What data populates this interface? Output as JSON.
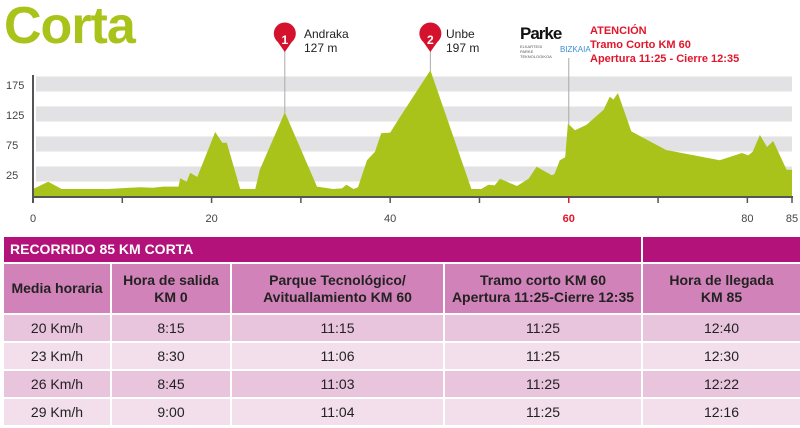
{
  "title": "Corta",
  "chart_data": {
    "type": "area",
    "x_ticks": [
      "0",
      "20",
      "40",
      "60",
      "80",
      "85"
    ],
    "y_ticks": [
      "25",
      "75",
      "125",
      "175"
    ],
    "xlim": [
      0,
      85
    ],
    "grid": "horizontal bands",
    "fill_color": "#a9c31a",
    "highlight_tick": "60",
    "highlight_color": "#e0162b",
    "points": [
      [
        0,
        0
      ],
      [
        1.7,
        12
      ],
      [
        3.2,
        0
      ],
      [
        8.3,
        0
      ],
      [
        12,
        3
      ],
      [
        13.4,
        2
      ],
      [
        14.6,
        4
      ],
      [
        16.3,
        4
      ],
      [
        16.5,
        18
      ],
      [
        17.2,
        12
      ],
      [
        17.6,
        27
      ],
      [
        18.4,
        20
      ],
      [
        20.4,
        95
      ],
      [
        21.2,
        77
      ],
      [
        21.7,
        77
      ],
      [
        23.2,
        0
      ],
      [
        24.9,
        0
      ],
      [
        25.4,
        32
      ],
      [
        28.2,
        128
      ],
      [
        31.8,
        4
      ],
      [
        33.6,
        0
      ],
      [
        34.6,
        1
      ],
      [
        35.1,
        7
      ],
      [
        35.9,
        0
      ],
      [
        36.4,
        3
      ],
      [
        37.4,
        48
      ],
      [
        38.3,
        62
      ],
      [
        39,
        93
      ],
      [
        40,
        94
      ],
      [
        41.1,
        120
      ],
      [
        44.5,
        198
      ],
      [
        49.1,
        0
      ],
      [
        50.2,
        0
      ],
      [
        51,
        7
      ],
      [
        51.7,
        6
      ],
      [
        52.3,
        17
      ],
      [
        54.2,
        5
      ],
      [
        55.5,
        17
      ],
      [
        56.4,
        37
      ],
      [
        58.1,
        23
      ],
      [
        58.4,
        25
      ],
      [
        59,
        48
      ],
      [
        59.6,
        53
      ],
      [
        59.9,
        109
      ],
      [
        60.7,
        98
      ],
      [
        62,
        107
      ],
      [
        63.9,
        132
      ],
      [
        64.6,
        154
      ],
      [
        65,
        149
      ],
      [
        65.5,
        160
      ],
      [
        67,
        96
      ],
      [
        70.9,
        65
      ],
      [
        76.9,
        48
      ],
      [
        79.4,
        60
      ],
      [
        80.1,
        56
      ],
      [
        80.6,
        62
      ],
      [
        81.4,
        90
      ],
      [
        82.2,
        70
      ],
      [
        82.9,
        80
      ],
      [
        84.4,
        32
      ],
      [
        85,
        32
      ]
    ],
    "markers": [
      {
        "number": "1",
        "name": "Andraka",
        "elevation": "127 m",
        "km": 28.2
      },
      {
        "number": "2",
        "name": "Unbe",
        "elevation": "197 m",
        "km": 44.5
      }
    ],
    "marker_color": "#d4122e",
    "checkpoint_km": 60
  },
  "logo": {
    "text": "Parke",
    "sub": "ELKARTEGI PARKE TEKNOLOGIKOA",
    "biz": "BIZKAIA"
  },
  "notice": [
    "ATENCIÓN",
    "Tramo Corto KM 60",
    "Apertura 11:25 - Cierre 12:35"
  ],
  "table": {
    "title": "RECORRIDO 85 KM CORTA",
    "headers": [
      [
        "Media horaria",
        ""
      ],
      [
        "Hora de salida",
        "KM 0"
      ],
      [
        "Parque Tecnológico/",
        "Avituallamiento KM 60"
      ],
      [
        "Tramo corto KM 60",
        "Apertura 11:25-Cierre 12:35"
      ],
      [
        "Hora de llegada",
        "KM 85"
      ]
    ],
    "rows": [
      [
        "20 Km/h",
        "8:15",
        "11:15",
        "11:25",
        "12:40"
      ],
      [
        "23 Km/h",
        "8:30",
        "11:06",
        "11:25",
        "12:30"
      ],
      [
        "26 Km/h",
        "8:45",
        "11:03",
        "11:25",
        "12:22"
      ],
      [
        "29 Km/h",
        "9:00",
        "11:04",
        "11:25",
        "12:16"
      ]
    ]
  }
}
